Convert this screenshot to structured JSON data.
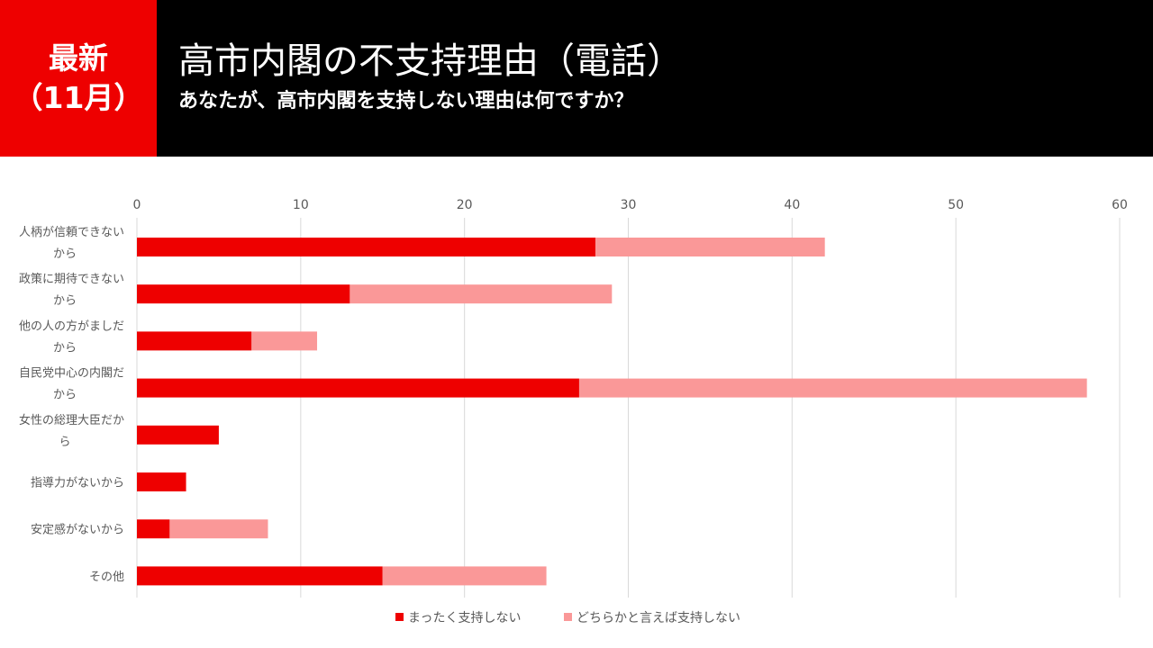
{
  "header": {
    "badge_line1": "最新",
    "badge_line2": "（11月）",
    "title": "高市内閣の不支持理由（電話）",
    "subtitle": "あなたが、高市内閣を支持しない理由は何ですか？"
  },
  "colors": {
    "header_bg": "#000000",
    "badge_bg": "#ee0000",
    "series1": "#ee0000",
    "series2": "#fa9898",
    "grid": "#d9d9d9"
  },
  "chart_data": {
    "type": "bar",
    "orientation": "horizontal",
    "stacked": true,
    "categories": [
      [
        "人柄が信頼できない",
        "から"
      ],
      [
        "政策に期待できない",
        "から"
      ],
      [
        "他の人の方がましだ",
        "から"
      ],
      [
        "自民党中心の内閣だ",
        "から"
      ],
      [
        "女性の総理大臣だか",
        "ら"
      ],
      [
        "指導力がないから"
      ],
      [
        "安定感がないから"
      ],
      [
        "その他"
      ]
    ],
    "series": [
      {
        "name": "まったく支持しない",
        "values": [
          28,
          13,
          7,
          27,
          5,
          3,
          2,
          15
        ]
      },
      {
        "name": "どちらかと言えば支持しない",
        "values": [
          14,
          16,
          4,
          31,
          0,
          0,
          6,
          10
        ]
      }
    ],
    "xlim": [
      0,
      60
    ],
    "ticks": [
      "0",
      "10",
      "20",
      "30",
      "40",
      "50",
      "60"
    ],
    "grid": true,
    "axis_position": "top",
    "legend_position": "bottom"
  }
}
